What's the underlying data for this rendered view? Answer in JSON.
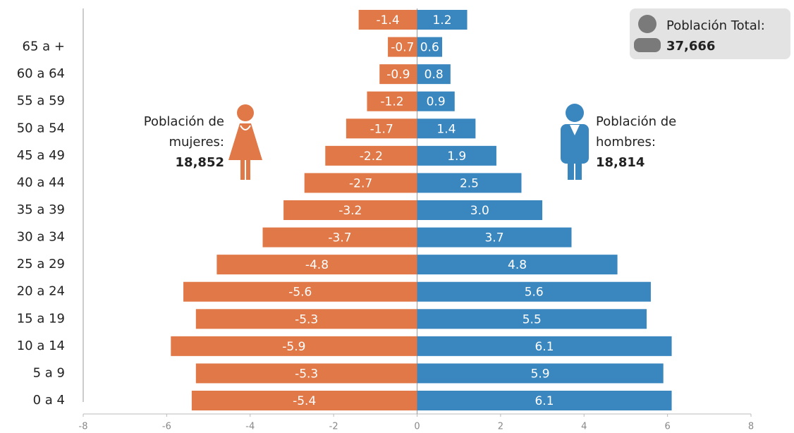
{
  "chart_data": {
    "type": "bar",
    "orientation": "horizontal",
    "categories": [
      "0 a 4",
      "5 a 9",
      "10 a 14",
      "15 a 19",
      "20 a 24",
      "25 a 29",
      "30 a 34",
      "35 a 39",
      "40 a 44",
      "45 a 49",
      "50 a 54",
      "55 a 59",
      "60 a 64",
      "65 a +",
      null
    ],
    "series": [
      {
        "color": "#e07848",
        "values": [
          -5.4,
          -5.3,
          -5.9,
          -5.3,
          -5.6,
          -4.8,
          -3.7,
          -3.2,
          -2.7,
          -2.2,
          -1.7,
          -1.2,
          -0.9,
          -0.7,
          -1.4
        ],
        "value_labels": [
          "-5.4",
          "-5.3",
          "-5.9",
          "-5.3",
          "-5.6",
          "-4.8",
          "-3.7",
          "-3.2",
          "-2.7",
          "-2.2",
          "-1.7",
          "-1.2",
          "-0.9",
          "-0.7",
          "-1.4"
        ]
      },
      {
        "color": "#3a87c0",
        "values": [
          6.1,
          5.9,
          6.1,
          5.5,
          5.6,
          4.8,
          3.7,
          3.0,
          2.5,
          1.9,
          1.4,
          0.9,
          0.8,
          0.6,
          1.2
        ],
        "value_labels": [
          "6.1",
          "5.9",
          "6.1",
          "5.5",
          "5.6",
          "4.8",
          "3.7",
          "3.0",
          "2.5",
          "1.9",
          "1.4",
          "0.9",
          "0.8",
          "0.6",
          "1.2"
        ]
      }
    ],
    "xlim": [
      -8,
      8
    ],
    "xticks": [
      -8,
      -6,
      -4,
      -2,
      0,
      2,
      4,
      6,
      8
    ],
    "annotations": {
      "women": {
        "lines": [
          "Población de",
          "mujeres:"
        ],
        "total": "18,852"
      },
      "men": {
        "lines": [
          "Población de",
          "hombres:"
        ],
        "total": "18,814"
      },
      "overall": {
        "lines": [
          "Población Total:"
        ],
        "total": "37,666"
      }
    }
  }
}
